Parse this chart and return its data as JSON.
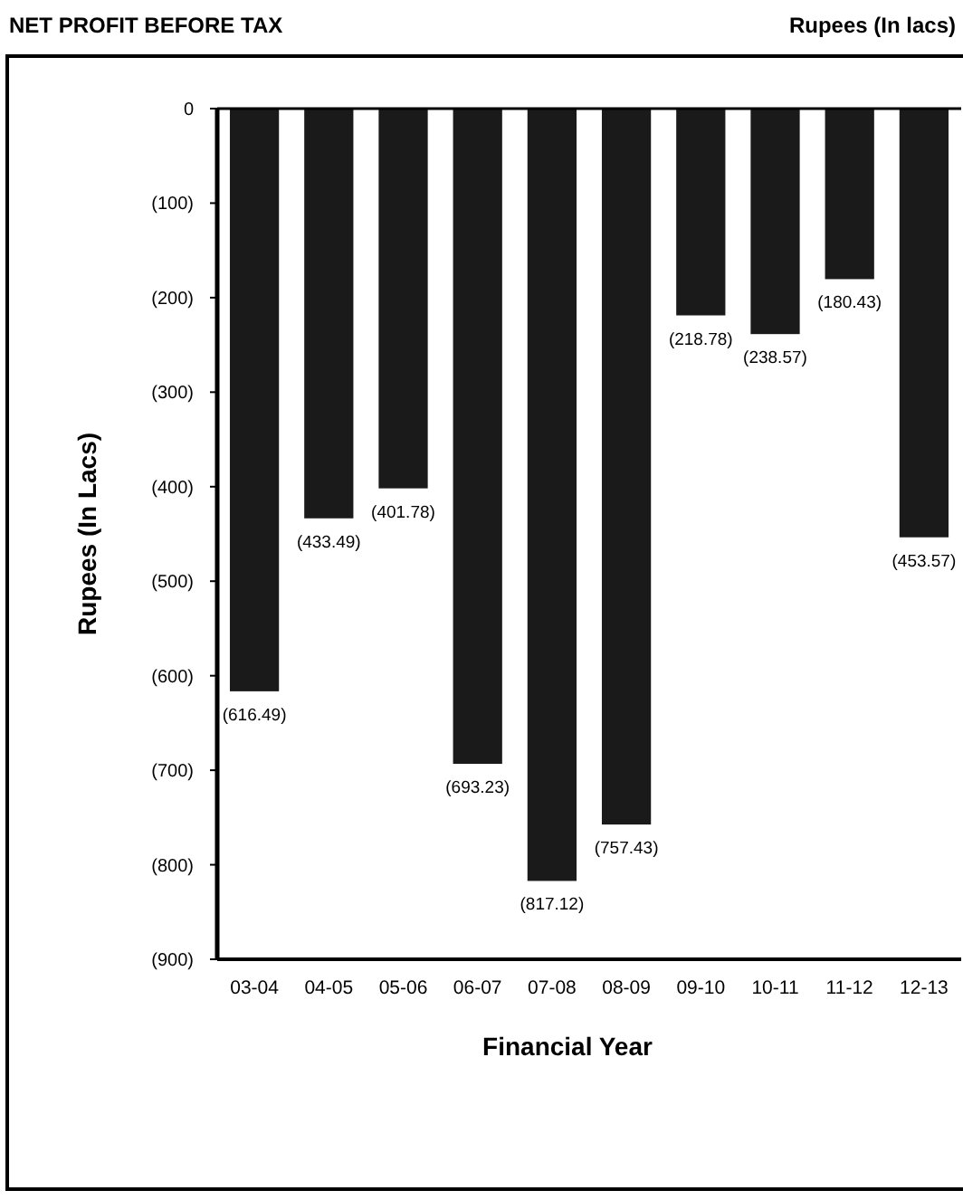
{
  "chart_data": {
    "type": "bar",
    "title": "NET PROFIT BEFORE TAX",
    "subtitle": "Rupees (In lacs)",
    "xlabel": "Financial Year",
    "ylabel": "Rupees (In Lacs)",
    "categories": [
      "03-04",
      "04-05",
      "05-06",
      "06-07",
      "07-08",
      "08-09",
      "09-10",
      "10-11",
      "11-12",
      "12-13"
    ],
    "values": [
      -616.49,
      -433.49,
      -401.78,
      -693.23,
      -817.12,
      -757.43,
      -218.78,
      -238.57,
      -180.43,
      -453.57
    ],
    "value_labels": [
      "(616.49)",
      "(433.49)",
      "(401.78)",
      "(693.23)",
      "(817.12)",
      "(757.43)",
      "(218.78)",
      "(238.57)",
      "(180.43)",
      "(453.57)"
    ],
    "color": "#1a1a1a",
    "ylim": [
      -900,
      0
    ],
    "yticks": [
      0,
      {
        "value": -100,
        "label": "(100)"
      },
      {
        "value": -200,
        "label": "(200)"
      },
      {
        "value": -300,
        "label": "(300)"
      },
      {
        "value": -400,
        "label": "(400)"
      },
      {
        "value": -500,
        "label": "(500)"
      },
      {
        "value": -600,
        "label": "(600)"
      },
      {
        "value": -700,
        "label": "(700)"
      },
      {
        "value": -800,
        "label": "(800)"
      },
      {
        "value": -900,
        "label": "(900)"
      }
    ],
    "grid": false
  }
}
